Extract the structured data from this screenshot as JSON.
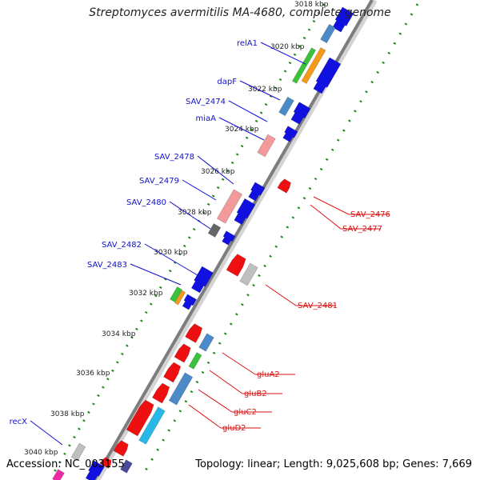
{
  "header": {
    "title": "Streptomyces avermitilis MA-4680, complete genome"
  },
  "footer": {
    "accession": "Accession: NC_003155",
    "summary": "Topology: linear; Length: 9,025,608 bp; Genes: 7,669"
  },
  "colors": {
    "backbone": "#8a8a8a",
    "forward_gene": "#1010e0",
    "reverse_gene": "#ee1010",
    "label_forward": "#1010cc",
    "label_reverse": "#dd1111",
    "tick": "#1a8a1a"
  },
  "ruler": {
    "ticks": [
      {
        "label": "3018 kbp"
      },
      {
        "label": "3020 kbp"
      },
      {
        "label": "3022 kbp"
      },
      {
        "label": "3024 kbp"
      },
      {
        "label": "3026 kbp"
      },
      {
        "label": "3028 kbp"
      },
      {
        "label": "3030 kbp"
      },
      {
        "label": "3032 kbp"
      },
      {
        "label": "3034 kbp"
      },
      {
        "label": "3036 kbp"
      },
      {
        "label": "3038 kbp"
      },
      {
        "label": "3040 kbp"
      }
    ]
  },
  "gene_labels": {
    "forward": [
      {
        "name": "relA1"
      },
      {
        "name": "dapF"
      },
      {
        "name": "SAV_2474"
      },
      {
        "name": "miaA"
      },
      {
        "name": "SAV_2478"
      },
      {
        "name": "SAV_2479"
      },
      {
        "name": "SAV_2480"
      },
      {
        "name": "SAV_2482"
      },
      {
        "name": "SAV_2483"
      },
      {
        "name": "recX"
      }
    ],
    "reverse": [
      {
        "name": "SAV_2476"
      },
      {
        "name": "SAV_2477"
      },
      {
        "name": "SAV_2481"
      },
      {
        "name": "gluA2"
      },
      {
        "name": "gluB2"
      },
      {
        "name": "gluC2"
      },
      {
        "name": "gluD2"
      }
    ]
  }
}
